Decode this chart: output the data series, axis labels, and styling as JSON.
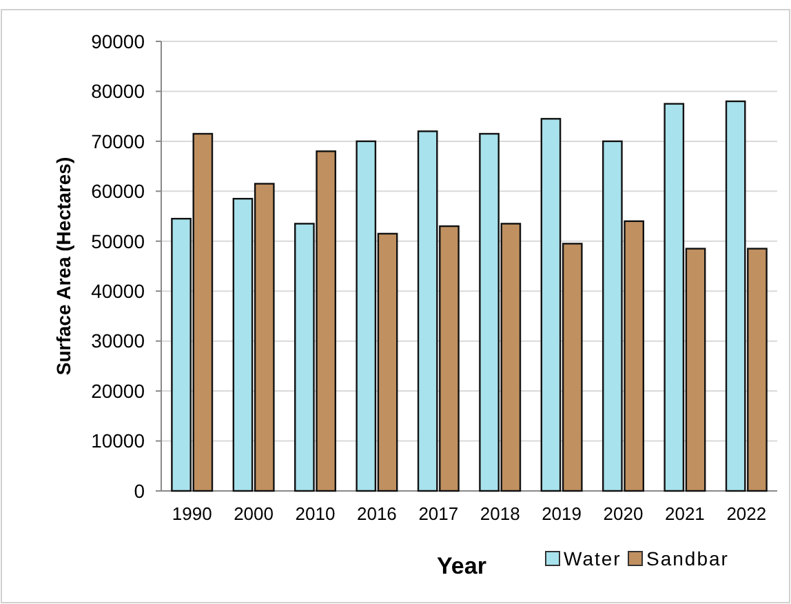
{
  "chart_data": {
    "type": "bar",
    "xlabel": "Year",
    "ylabel": "Surface Area (Hectares)",
    "categories": [
      "1990",
      "2000",
      "2010",
      "2016",
      "2017",
      "2018",
      "2019",
      "2020",
      "2021",
      "2022"
    ],
    "series": [
      {
        "name": "Water",
        "color": "#a8e2ec",
        "values": [
          54500,
          58500,
          53500,
          70000,
          72000,
          71500,
          74500,
          70000,
          77500,
          78000
        ]
      },
      {
        "name": "Sandbar",
        "color": "#c09060",
        "values": [
          71500,
          61500,
          68000,
          51500,
          53000,
          53500,
          49500,
          54000,
          48500,
          48500
        ]
      }
    ],
    "ylim": [
      0,
      90000
    ],
    "yticks": [
      0,
      10000,
      20000,
      30000,
      40000,
      50000,
      60000,
      70000,
      80000,
      90000
    ],
    "grid": "y",
    "legend": "bottom right"
  }
}
